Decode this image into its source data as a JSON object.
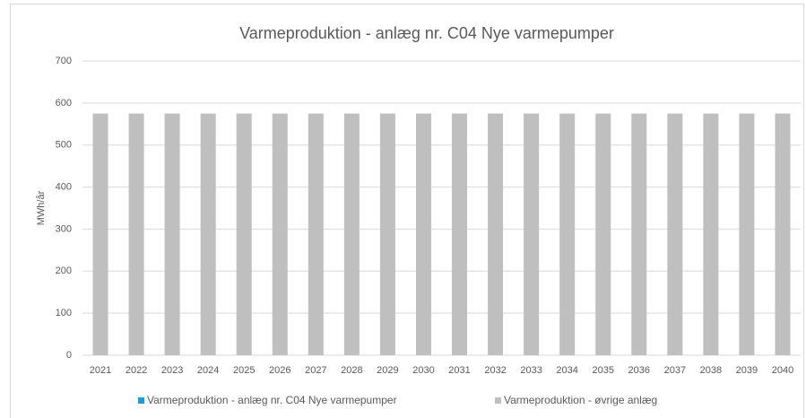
{
  "chart_data": {
    "type": "stacked_bar",
    "title": "Varmeproduktion - anlæg nr. C04 Nye varmepumper",
    "ylabel": "MWh/år",
    "categories": [
      "2021",
      "2022",
      "2023",
      "2024",
      "2025",
      "2026",
      "2027",
      "2028",
      "2029",
      "2030",
      "2031",
      "2032",
      "2033",
      "2034",
      "2035",
      "2036",
      "2037",
      "2038",
      "2039",
      "2040"
    ],
    "series": [
      {
        "name": "Varmeproduktion - anlæg nr. C04 Nye varmepumper",
        "color": "#1f9bde",
        "values": [
          0,
          0,
          0,
          0,
          0,
          0,
          0,
          0,
          0,
          0,
          0,
          0,
          0,
          0,
          0,
          0,
          0,
          0,
          0,
          0
        ]
      },
      {
        "name": "Varmeproduktion - øvrige anlæg",
        "color": "#bfbfbf",
        "values": [
          575,
          575,
          575,
          575,
          575,
          575,
          575,
          575,
          575,
          575,
          575,
          575,
          575,
          575,
          575,
          575,
          575,
          575,
          575,
          575
        ]
      }
    ],
    "ylim": [
      0,
      700
    ],
    "yticks": [
      0,
      100,
      200,
      300,
      400,
      500,
      600,
      700
    ],
    "grid": true,
    "legend": "bottom"
  }
}
